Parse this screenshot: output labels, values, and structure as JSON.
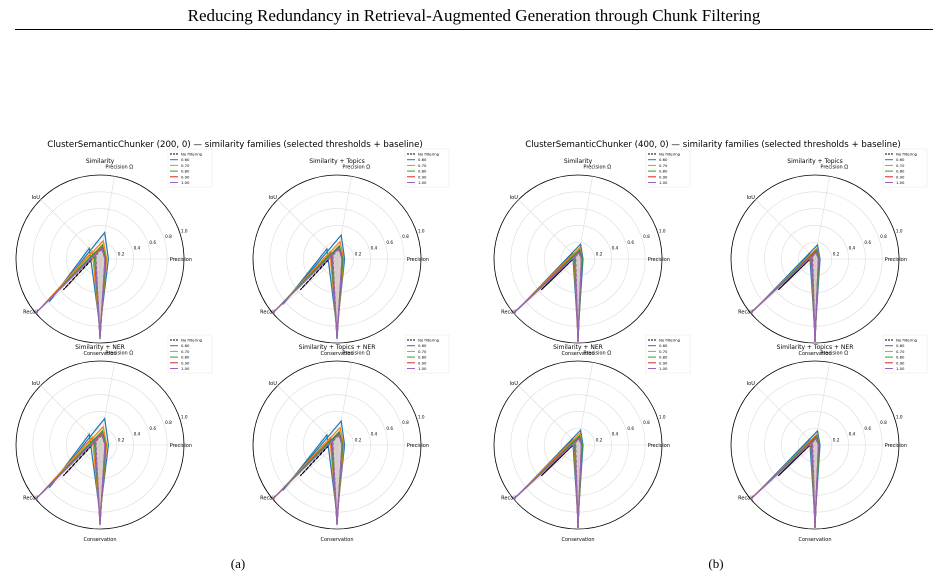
{
  "page": {
    "header": "Reducing Redundancy in Retrieval-Augmented Generation through Chunk Filtering",
    "captions": [
      "(a)",
      "(b)"
    ]
  },
  "colors": {
    "No filtering": "#000000",
    "0.60": "#1f77b4",
    "0.70": "#ff7f0e",
    "0.80": "#2ca02c",
    "0.90": "#d62728",
    "1.00": "#9467bd",
    "fill": "#c9b8b4"
  },
  "chart_data": [
    {
      "type": "radar",
      "panel": "a",
      "title": "ClusterSemanticChunker (200, 0) — similarity families (selected thresholds + baseline)",
      "axes": [
        "Precision Ω",
        "Precision",
        "Conservation",
        "IoU",
        "Recall"
      ],
      "radial_ticks": [
        "0.2",
        "0.4",
        "0.6",
        "0.8",
        "1.0"
      ],
      "rlim": [
        0,
        1
      ],
      "legend_entries": [
        "No filtering",
        "0.60",
        "0.70",
        "0.80",
        "0.90",
        "1.00"
      ],
      "legend_position": "upper-right",
      "subplots": [
        {
          "title": "Similarity",
          "series": [
            {
              "name": "No filtering",
              "values": [
                0.12,
                0.06,
                0.95,
                0.07,
                0.57
              ]
            },
            {
              "name": "0.60",
              "values": [
                0.32,
                0.1,
                0.82,
                0.18,
                0.79
              ]
            },
            {
              "name": "0.70",
              "values": [
                0.22,
                0.08,
                0.88,
                0.13,
                0.97
              ]
            },
            {
              "name": "0.80",
              "values": [
                0.17,
                0.07,
                0.91,
                0.1,
                0.99
              ]
            },
            {
              "name": "0.90",
              "values": [
                0.14,
                0.06,
                0.94,
                0.08,
                1.0
              ]
            },
            {
              "name": "1.00",
              "values": [
                0.13,
                0.06,
                0.95,
                0.08,
                1.0
              ]
            }
          ]
        },
        {
          "title": "Similarity + Topics",
          "series": [
            {
              "name": "No filtering",
              "values": [
                0.12,
                0.06,
                0.95,
                0.07,
                0.57
              ]
            },
            {
              "name": "0.60",
              "values": [
                0.29,
                0.09,
                0.84,
                0.17,
                0.84
              ]
            },
            {
              "name": "0.70",
              "values": [
                0.21,
                0.08,
                0.89,
                0.12,
                0.97
              ]
            },
            {
              "name": "0.80",
              "values": [
                0.16,
                0.07,
                0.92,
                0.1,
                0.99
              ]
            },
            {
              "name": "0.90",
              "values": [
                0.14,
                0.06,
                0.94,
                0.08,
                1.0
              ]
            },
            {
              "name": "1.00",
              "values": [
                0.13,
                0.06,
                0.95,
                0.08,
                1.0
              ]
            }
          ]
        },
        {
          "title": "Similarity + NER",
          "series": [
            {
              "name": "No filtering",
              "values": [
                0.12,
                0.06,
                0.95,
                0.07,
                0.57
              ]
            },
            {
              "name": "0.60",
              "values": [
                0.32,
                0.1,
                0.82,
                0.18,
                0.79
              ]
            },
            {
              "name": "0.70",
              "values": [
                0.22,
                0.08,
                0.88,
                0.13,
                0.97
              ]
            },
            {
              "name": "0.80",
              "values": [
                0.17,
                0.07,
                0.91,
                0.1,
                0.99
              ]
            },
            {
              "name": "0.90",
              "values": [
                0.14,
                0.06,
                0.94,
                0.08,
                1.0
              ]
            },
            {
              "name": "1.00",
              "values": [
                0.13,
                0.06,
                0.95,
                0.08,
                1.0
              ]
            }
          ]
        },
        {
          "title": "Similarity + Topics + NER",
          "series": [
            {
              "name": "No filtering",
              "values": [
                0.12,
                0.06,
                0.95,
                0.07,
                0.57
              ]
            },
            {
              "name": "0.60",
              "values": [
                0.29,
                0.09,
                0.84,
                0.17,
                0.84
              ]
            },
            {
              "name": "0.70",
              "values": [
                0.21,
                0.08,
                0.89,
                0.12,
                0.97
              ]
            },
            {
              "name": "0.80",
              "values": [
                0.16,
                0.07,
                0.92,
                0.1,
                0.99
              ]
            },
            {
              "name": "0.90",
              "values": [
                0.14,
                0.06,
                0.94,
                0.08,
                1.0
              ]
            },
            {
              "name": "1.00",
              "values": [
                0.13,
                0.06,
                0.95,
                0.08,
                1.0
              ]
            }
          ]
        }
      ]
    },
    {
      "type": "radar",
      "panel": "b",
      "title": "ClusterSemanticChunker (400, 0) — similarity families (selected thresholds + baseline)",
      "axes": [
        "Precision Ω",
        "Precision",
        "Conservation",
        "IoU",
        "Recall"
      ],
      "radial_ticks": [
        "0.2",
        "0.4",
        "0.6",
        "0.8",
        "1.0"
      ],
      "rlim": [
        0,
        1
      ],
      "legend_entries": [
        "No filtering",
        "0.60",
        "0.70",
        "0.80",
        "0.90",
        "1.00"
      ],
      "legend_position": "upper-right",
      "subplots": [
        {
          "title": "Similarity",
          "series": [
            {
              "name": "No filtering",
              "values": [
                0.07,
                0.04,
                0.99,
                0.04,
                0.57
              ]
            },
            {
              "name": "0.60",
              "values": [
                0.18,
                0.06,
                0.9,
                0.09,
                0.93
              ]
            },
            {
              "name": "0.70",
              "values": [
                0.14,
                0.05,
                0.93,
                0.07,
                0.98
              ]
            },
            {
              "name": "0.80",
              "values": [
                0.11,
                0.05,
                0.95,
                0.06,
                1.0
              ]
            },
            {
              "name": "0.90",
              "values": [
                0.09,
                0.04,
                0.97,
                0.05,
                1.0
              ]
            },
            {
              "name": "1.00",
              "values": [
                0.08,
                0.04,
                0.97,
                0.05,
                1.0
              ]
            }
          ]
        },
        {
          "title": "Similarity + Topics",
          "series": [
            {
              "name": "No filtering",
              "values": [
                0.07,
                0.04,
                0.99,
                0.04,
                0.57
              ]
            },
            {
              "name": "0.60",
              "values": [
                0.17,
                0.06,
                0.91,
                0.09,
                0.95
              ]
            },
            {
              "name": "0.70",
              "values": [
                0.13,
                0.05,
                0.93,
                0.07,
                0.99
              ]
            },
            {
              "name": "0.80",
              "values": [
                0.11,
                0.05,
                0.95,
                0.06,
                1.0
              ]
            },
            {
              "name": "0.90",
              "values": [
                0.09,
                0.04,
                0.97,
                0.05,
                1.0
              ]
            },
            {
              "name": "1.00",
              "values": [
                0.08,
                0.04,
                0.97,
                0.05,
                1.0
              ]
            }
          ]
        },
        {
          "title": "Similarity + NER",
          "series": [
            {
              "name": "No filtering",
              "values": [
                0.07,
                0.04,
                0.99,
                0.04,
                0.57
              ]
            },
            {
              "name": "0.60",
              "values": [
                0.18,
                0.06,
                0.9,
                0.09,
                0.93
              ]
            },
            {
              "name": "0.70",
              "values": [
                0.14,
                0.05,
                0.93,
                0.07,
                0.98
              ]
            },
            {
              "name": "0.80",
              "values": [
                0.11,
                0.05,
                0.95,
                0.06,
                1.0
              ]
            },
            {
              "name": "0.90",
              "values": [
                0.09,
                0.04,
                0.97,
                0.05,
                1.0
              ]
            },
            {
              "name": "1.00",
              "values": [
                0.08,
                0.04,
                0.97,
                0.05,
                1.0
              ]
            }
          ]
        },
        {
          "title": "Similarity + Topics + NER",
          "series": [
            {
              "name": "No filtering",
              "values": [
                0.07,
                0.04,
                0.99,
                0.04,
                0.57
              ]
            },
            {
              "name": "0.60",
              "values": [
                0.17,
                0.06,
                0.91,
                0.09,
                0.95
              ]
            },
            {
              "name": "0.70",
              "values": [
                0.13,
                0.05,
                0.93,
                0.07,
                0.99
              ]
            },
            {
              "name": "0.80",
              "values": [
                0.11,
                0.05,
                0.95,
                0.06,
                1.0
              ]
            },
            {
              "name": "0.90",
              "values": [
                0.09,
                0.04,
                0.97,
                0.05,
                1.0
              ]
            },
            {
              "name": "1.00",
              "values": [
                0.08,
                0.04,
                0.97,
                0.05,
                1.0
              ]
            }
          ]
        }
      ]
    }
  ]
}
